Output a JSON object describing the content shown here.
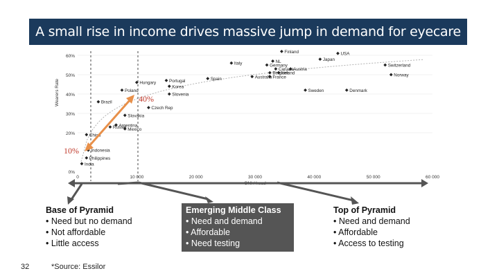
{
  "title": "A small rise in income drives massive jump in demand for eyecare",
  "chart_data": {
    "type": "scatter",
    "ylabel": "Wearers Rate",
    "xlabel": "GNI / head",
    "xlim": [
      0,
      60000
    ],
    "ylim": [
      0,
      60
    ],
    "x_ticks": [
      {
        "value": 0,
        "label": "0"
      },
      {
        "value": 10000,
        "label": "10 000"
      },
      {
        "value": 20000,
        "label": "20 000"
      },
      {
        "value": 30000,
        "label": "30 000"
      },
      {
        "value": 40000,
        "label": "40 000"
      },
      {
        "value": 50000,
        "label": "50 000"
      },
      {
        "value": 60000,
        "label": "60 000"
      }
    ],
    "y_ticks": [
      {
        "value": 0,
        "label": "0%"
      },
      {
        "value": 20,
        "label": "20%"
      },
      {
        "value": 30,
        "label": "30%"
      },
      {
        "value": 40,
        "label": "40%"
      },
      {
        "value": 50,
        "label": "50%"
      },
      {
        "value": 60,
        "label": "60%"
      }
    ],
    "points": [
      {
        "label": "Finland",
        "x": 34500,
        "y": 62
      },
      {
        "label": "USA",
        "x": 44000,
        "y": 61
      },
      {
        "label": "Japan",
        "x": 41000,
        "y": 58
      },
      {
        "label": "Italy",
        "x": 26000,
        "y": 56
      },
      {
        "label": "NL",
        "x": 33000,
        "y": 57
      },
      {
        "label": "Germany",
        "x": 32000,
        "y": 55
      },
      {
        "label": "Switzerland",
        "x": 52000,
        "y": 55
      },
      {
        "label": "Canada",
        "x": 33500,
        "y": 53
      },
      {
        "label": "Austria",
        "x": 36000,
        "y": 53
      },
      {
        "label": "Belgium",
        "x": 32500,
        "y": 51
      },
      {
        "label": "Ireland",
        "x": 34000,
        "y": 51
      },
      {
        "label": "Spain",
        "x": 22000,
        "y": 48
      },
      {
        "label": "Australia",
        "x": 29500,
        "y": 49
      },
      {
        "label": "France",
        "x": 32500,
        "y": 49
      },
      {
        "label": "Norway",
        "x": 53000,
        "y": 50
      },
      {
        "label": "Hungary",
        "x": 10000,
        "y": 46
      },
      {
        "label": "Portugal",
        "x": 15000,
        "y": 47
      },
      {
        "label": "Korea",
        "x": 15500,
        "y": 44
      },
      {
        "label": "Poland",
        "x": 7500,
        "y": 42
      },
      {
        "label": "Slovenia",
        "x": 15500,
        "y": 40
      },
      {
        "label": "Sweden",
        "x": 38500,
        "y": 42
      },
      {
        "label": "Denmark",
        "x": 45500,
        "y": 42
      },
      {
        "label": "Brazil",
        "x": 3500,
        "y": 36
      },
      {
        "label": "Czech Rep",
        "x": 12000,
        "y": 33
      },
      {
        "label": "Slovakia",
        "x": 8000,
        "y": 29
      },
      {
        "label": "Argentina",
        "x": 6500,
        "y": 24
      },
      {
        "label": "Mexico",
        "x": 8000,
        "y": 22
      },
      {
        "label": "Russia",
        "x": 5500,
        "y": 23
      },
      {
        "label": "China",
        "x": 1500,
        "y": 19
      },
      {
        "label": "Indonesia",
        "x": 1800,
        "y": 11
      },
      {
        "label": "Philippines",
        "x": 1500,
        "y": 7
      },
      {
        "label": "India",
        "x": 700,
        "y": 4
      }
    ],
    "annotations": [
      "10%",
      "40%"
    ]
  },
  "columns": [
    {
      "title": "Base of Pyramid",
      "items": [
        "Need but no demand",
        "Not affordable",
        "Little access"
      ]
    },
    {
      "title": "Emerging Middle Class",
      "items": [
        "Need and demand",
        "Affordable",
        "Need testing"
      ]
    },
    {
      "title": "Top of Pyramid",
      "items": [
        "Need and demand",
        "Affordable",
        "Access to testing"
      ]
    }
  ],
  "slide_number": "32",
  "source": "*Source: Essilor",
  "colors": {
    "title_bg": "#1b3a5c",
    "arrow": "#e8904a",
    "annotation": "#c0392b",
    "mid_box": "#555555"
  }
}
